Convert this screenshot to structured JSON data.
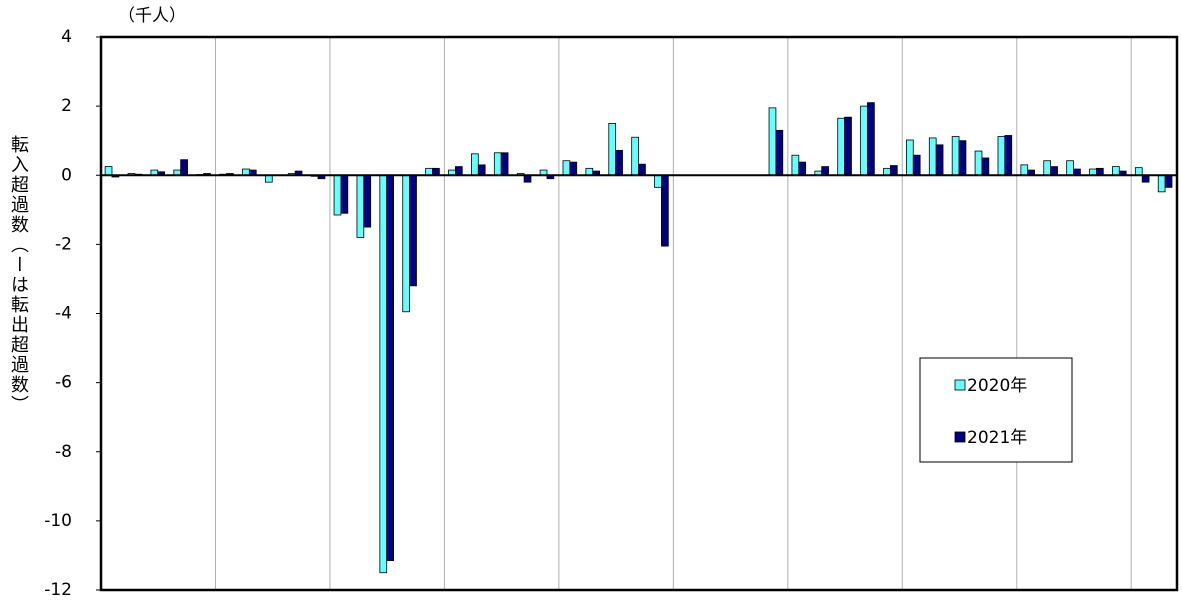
{
  "chart_data": {
    "type": "bar",
    "y_label": "転入超過数（ーは転出超過数）",
    "unit_label": "（千人）",
    "categories": [
      null,
      null,
      null,
      null,
      null,
      null,
      null,
      null,
      null,
      null,
      null,
      null,
      null,
      null,
      null,
      null,
      null,
      null,
      null,
      null,
      null,
      null,
      null,
      null,
      null,
      null,
      null,
      null,
      null,
      null,
      null,
      null,
      null,
      null,
      null,
      null,
      null,
      null,
      null,
      null,
      null,
      null,
      null,
      null,
      null,
      null,
      null
    ],
    "series": [
      {
        "name": "2020年",
        "color": "#66ffff",
        "values": [
          0.25,
          0.05,
          0.15,
          0.15,
          0.02,
          0.03,
          0.18,
          -0.2,
          0.05,
          -0.03,
          -1.15,
          -1.8,
          -11.5,
          -3.95,
          0.2,
          0.15,
          0.62,
          0.65,
          0.05,
          0.15,
          0.42,
          0.2,
          1.5,
          1.1,
          -0.35,
          0,
          0,
          0,
          0,
          1.95,
          0.58,
          0.12,
          1.65,
          2.0,
          0.2,
          1.02,
          1.08,
          1.12,
          0.7,
          1.12,
          0.3,
          0.42,
          0.42,
          0.18,
          0.25,
          0.22,
          -0.48
        ]
      },
      {
        "name": "2021年",
        "color": "#000080",
        "values": [
          -0.05,
          0.03,
          0.1,
          0.45,
          0.05,
          0.05,
          0.15,
          0,
          0.12,
          -0.1,
          -1.1,
          -1.5,
          -11.15,
          -3.2,
          0.2,
          0.25,
          0.3,
          0.65,
          -0.2,
          -0.1,
          0.38,
          0.12,
          0.72,
          0.32,
          -2.05,
          0,
          0,
          0,
          0,
          1.3,
          0.38,
          0.25,
          1.68,
          2.1,
          0.28,
          0.58,
          0.88,
          1.0,
          0.5,
          1.15,
          0.15,
          0.25,
          0.18,
          0.2,
          0.12,
          -0.2,
          -0.35
        ]
      }
    ],
    "ylim": [
      -12,
      4
    ],
    "yticks": [
      -12,
      -10,
      -8,
      -6,
      -4,
      -2,
      0,
      2,
      4
    ],
    "grid": false,
    "x_grid_interval": 5,
    "legend": "lower right"
  }
}
